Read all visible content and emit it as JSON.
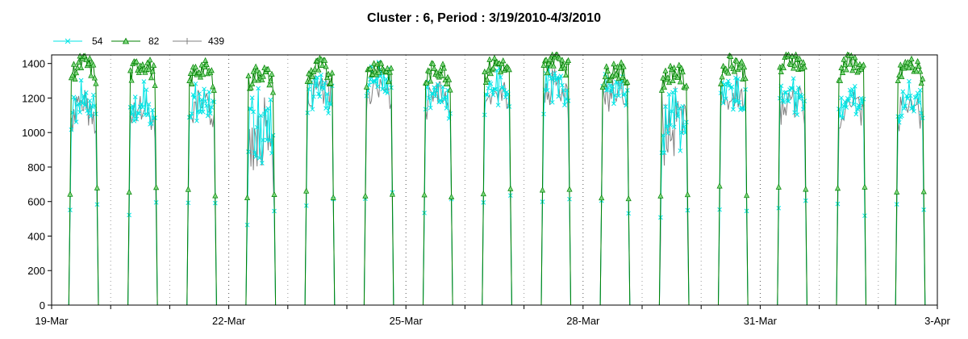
{
  "chart_data": {
    "type": "line",
    "title": "Cluster : 6, Period : 3/19/2010-4/3/2010",
    "xlabel": "",
    "ylabel": "",
    "ylim": [
      0,
      1450
    ],
    "y_ticks": [
      0,
      200,
      400,
      600,
      800,
      1000,
      1200,
      1400
    ],
    "x_range": [
      "2010-03-19",
      "2010-04-03"
    ],
    "x_tick_labels": [
      "19-Mar",
      "22-Mar",
      "25-Mar",
      "28-Mar",
      "31-Mar",
      "3-Apr"
    ],
    "x_tick_dates": [
      "2010-03-19",
      "2010-03-22",
      "2010-03-25",
      "2010-03-28",
      "2010-03-31",
      "2010-04-03"
    ],
    "grid": "vertical dotted lines at each day",
    "legend": {
      "placement": "top-left",
      "orientation": "horizontal"
    },
    "series": [
      {
        "name": "54",
        "color": "#00e5e5",
        "marker": "x",
        "daily_peak": [
          1260,
          1250,
          1270,
          1260,
          1330,
          1390,
          1320,
          1350,
          1370,
          1340,
          1300,
          1320,
          1280,
          1270,
          1260
        ]
      },
      {
        "name": "82",
        "color": "#008000",
        "marker": "triangle",
        "daily_peak": [
          1400,
          1400,
          1370,
          1350,
          1380,
          1390,
          1370,
          1400,
          1440,
          1370,
          1350,
          1410,
          1430,
          1410,
          1390
        ]
      },
      {
        "name": "439",
        "color": "#808080",
        "marker": "plus",
        "daily_peak": [
          1230,
          1210,
          1240,
          1250,
          1340,
          1360,
          1300,
          1330,
          1360,
          1320,
          1270,
          1300,
          1260,
          1240,
          1230
        ]
      }
    ],
    "daily_profile_note": "Each day: zero overnight, rising around 7:00, plateau near the daily peak, falling to zero around 19:00."
  }
}
